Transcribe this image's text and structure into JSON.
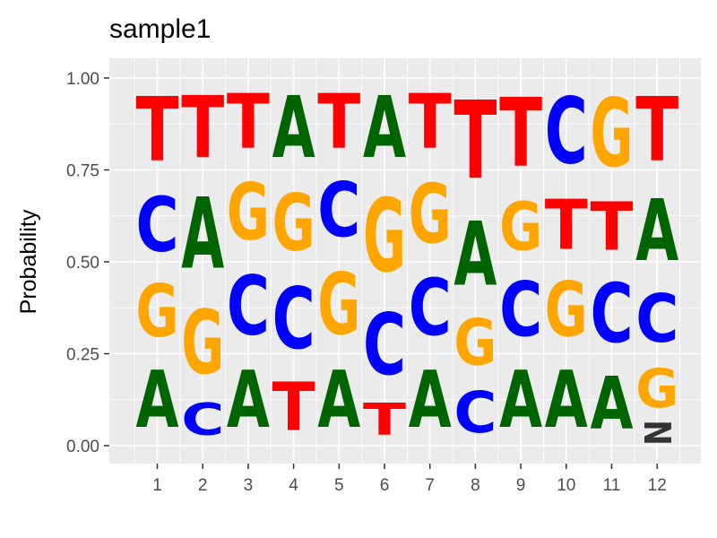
{
  "chart_data": {
    "type": "sequence-logo",
    "title": "sample1",
    "ylabel": "Probability",
    "xlabel": "",
    "ylim": [
      0,
      1
    ],
    "yticks": [
      0,
      0.25,
      0.5,
      0.75,
      1
    ],
    "ytick_labels": [
      "0.00",
      "0.25",
      "0.50",
      "0.75",
      "1.00"
    ],
    "positions": [
      "1",
      "2",
      "3",
      "4",
      "5",
      "6",
      "7",
      "8",
      "9",
      "10",
      "11",
      "12"
    ],
    "grid": true,
    "colors": {
      "A": "#006400",
      "C": "#0000ff",
      "G": "#ffa500",
      "T": "#ff0000",
      "N": "#333333"
    },
    "stacks": [
      [
        {
          "letter": "A",
          "value": 0.25
        },
        {
          "letter": "G",
          "value": 0.23
        },
        {
          "letter": "C",
          "value": 0.24
        },
        {
          "letter": "T",
          "value": 0.28
        }
      ],
      [
        {
          "letter": "C",
          "value": 0.14
        },
        {
          "letter": "G",
          "value": 0.28
        },
        {
          "letter": "A",
          "value": 0.31
        },
        {
          "letter": "T",
          "value": 0.27
        }
      ],
      [
        {
          "letter": "A",
          "value": 0.25
        },
        {
          "letter": "C",
          "value": 0.26
        },
        {
          "letter": "G",
          "value": 0.25
        },
        {
          "letter": "T",
          "value": 0.24
        }
      ],
      [
        {
          "letter": "T",
          "value": 0.21
        },
        {
          "letter": "C",
          "value": 0.27
        },
        {
          "letter": "G",
          "value": 0.25
        },
        {
          "letter": "A",
          "value": 0.27
        }
      ],
      [
        {
          "letter": "A",
          "value": 0.25
        },
        {
          "letter": "G",
          "value": 0.27
        },
        {
          "letter": "C",
          "value": 0.24
        },
        {
          "letter": "T",
          "value": 0.24
        }
      ],
      [
        {
          "letter": "T",
          "value": 0.14
        },
        {
          "letter": "C",
          "value": 0.27
        },
        {
          "letter": "G",
          "value": 0.32
        },
        {
          "letter": "A",
          "value": 0.27
        }
      ],
      [
        {
          "letter": "A",
          "value": 0.25
        },
        {
          "letter": "C",
          "value": 0.25
        },
        {
          "letter": "G",
          "value": 0.26
        },
        {
          "letter": "T",
          "value": 0.24
        }
      ],
      [
        {
          "letter": "C",
          "value": 0.18
        },
        {
          "letter": "G",
          "value": 0.2
        },
        {
          "letter": "A",
          "value": 0.28
        },
        {
          "letter": "T",
          "value": 0.34
        }
      ],
      [
        {
          "letter": "A",
          "value": 0.25
        },
        {
          "letter": "C",
          "value": 0.24
        },
        {
          "letter": "G",
          "value": 0.21
        },
        {
          "letter": "T",
          "value": 0.3
        }
      ],
      [
        {
          "letter": "A",
          "value": 0.25
        },
        {
          "letter": "G",
          "value": 0.24
        },
        {
          "letter": "T",
          "value": 0.22
        },
        {
          "letter": "C",
          "value": 0.29
        }
      ],
      [
        {
          "letter": "A",
          "value": 0.23
        },
        {
          "letter": "C",
          "value": 0.26
        },
        {
          "letter": "T",
          "value": 0.21
        },
        {
          "letter": "G",
          "value": 0.3
        }
      ],
      [
        {
          "letter": "N",
          "value": 0.07
        },
        {
          "letter": "G",
          "value": 0.17
        },
        {
          "letter": "C",
          "value": 0.21
        },
        {
          "letter": "A",
          "value": 0.27
        },
        {
          "letter": "T",
          "value": 0.28
        }
      ]
    ]
  }
}
